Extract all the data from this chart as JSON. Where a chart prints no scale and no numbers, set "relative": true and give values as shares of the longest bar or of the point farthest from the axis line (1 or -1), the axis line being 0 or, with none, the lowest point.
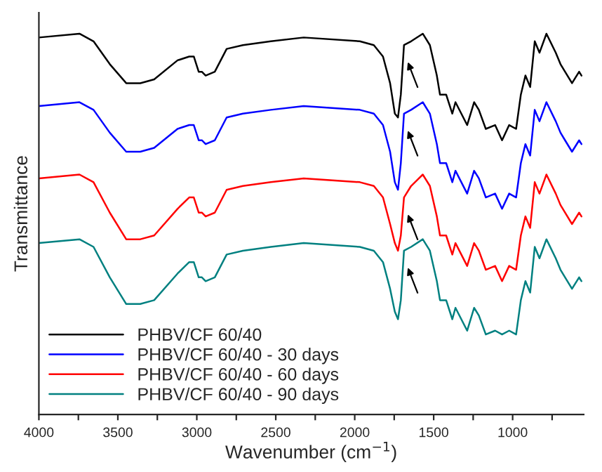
{
  "chart_data": {
    "type": "line",
    "relative": true,
    "xlabel": "Wavenumber (cm$^{−1}$)",
    "ylabel": "Transmittance",
    "xlim": [
      4000,
      550
    ],
    "xticks": [
      4000,
      {
        "value": 3750,
        "label": null
      },
      3500,
      {
        "value": 3250,
        "label": null
      },
      3000,
      {
        "value": 2750,
        "label": null
      },
      2500,
      {
        "value": 2250,
        "label": null
      },
      2000,
      {
        "value": 1750,
        "label": null
      },
      1500,
      {
        "value": 1250,
        "label": null
      },
      1000,
      {
        "value": 750,
        "label": null
      }
    ],
    "x": [
      4000,
      3743,
      3654,
      3551,
      3447,
      3358,
      3270,
      3122,
      3048,
      3019,
      2988,
      2968,
      2944,
      2886,
      2811,
      2708,
      2531,
      2323,
      1968,
      1879,
      1821,
      1776,
      1746,
      1726,
      1708,
      1688,
      1643,
      1569,
      1524,
      1480,
      1460,
      1421,
      1382,
      1362,
      1288,
      1244,
      1214,
      1170,
      1111,
      1067,
      1022,
      978,
      948,
      919,
      889,
      860,
      830,
      786,
      727,
      697,
      668,
      624,
      579,
      564
    ],
    "series": [
      {
        "name": "PHBV/CF 60/40",
        "color": "#000000",
        "values": [
          0.99,
          1.0,
          0.98,
          0.92,
          0.87,
          0.87,
          0.88,
          0.93,
          0.94,
          0.94,
          0.9,
          0.9,
          0.89,
          0.9,
          0.96,
          0.97,
          0.98,
          0.99,
          0.98,
          0.97,
          0.94,
          0.87,
          0.79,
          0.78,
          0.84,
          0.97,
          0.98,
          1.0,
          0.97,
          0.89,
          0.84,
          0.84,
          0.79,
          0.82,
          0.76,
          0.82,
          0.8,
          0.75,
          0.76,
          0.72,
          0.76,
          0.75,
          0.84,
          0.89,
          0.86,
          0.98,
          0.95,
          1.0,
          0.95,
          0.92,
          0.9,
          0.87,
          0.9,
          0.89
        ]
      },
      {
        "name": "PHBV/CF 60/40 - 30 days",
        "color": "#0000ff",
        "values": [
          0.81,
          0.82,
          0.8,
          0.74,
          0.69,
          0.69,
          0.7,
          0.75,
          0.76,
          0.76,
          0.72,
          0.72,
          0.71,
          0.72,
          0.78,
          0.79,
          0.8,
          0.81,
          0.8,
          0.79,
          0.76,
          0.69,
          0.61,
          0.59,
          0.66,
          0.79,
          0.8,
          0.82,
          0.79,
          0.71,
          0.66,
          0.66,
          0.61,
          0.64,
          0.58,
          0.64,
          0.62,
          0.57,
          0.58,
          0.54,
          0.58,
          0.57,
          0.66,
          0.71,
          0.68,
          0.8,
          0.77,
          0.82,
          0.77,
          0.74,
          0.72,
          0.69,
          0.72,
          0.71
        ]
      },
      {
        "name": "PHBV/CF 60/40 - 60 days",
        "color": "#ff0000",
        "values": [
          0.62,
          0.63,
          0.61,
          0.53,
          0.46,
          0.46,
          0.47,
          0.54,
          0.57,
          0.57,
          0.53,
          0.53,
          0.52,
          0.53,
          0.59,
          0.6,
          0.61,
          0.62,
          0.61,
          0.6,
          0.57,
          0.5,
          0.45,
          0.43,
          0.47,
          0.57,
          0.6,
          0.63,
          0.6,
          0.52,
          0.47,
          0.47,
          0.42,
          0.45,
          0.39,
          0.45,
          0.43,
          0.38,
          0.39,
          0.35,
          0.39,
          0.38,
          0.47,
          0.52,
          0.49,
          0.61,
          0.58,
          0.63,
          0.58,
          0.55,
          0.53,
          0.5,
          0.53,
          0.52
        ]
      },
      {
        "name": "PHBV/CF 60/40 - 90 days",
        "color": "#008080",
        "values": [
          0.45,
          0.46,
          0.44,
          0.36,
          0.29,
          0.29,
          0.3,
          0.37,
          0.4,
          0.4,
          0.36,
          0.36,
          0.35,
          0.36,
          0.42,
          0.43,
          0.44,
          0.45,
          0.44,
          0.43,
          0.4,
          0.33,
          0.27,
          0.25,
          0.3,
          0.43,
          0.44,
          0.46,
          0.43,
          0.35,
          0.3,
          0.3,
          0.25,
          0.28,
          0.22,
          0.28,
          0.26,
          0.21,
          0.22,
          0.21,
          0.22,
          0.21,
          0.3,
          0.35,
          0.32,
          0.44,
          0.41,
          0.46,
          0.41,
          0.38,
          0.36,
          0.33,
          0.36,
          0.35
        ]
      }
    ],
    "legend": "bottom left",
    "grid": false
  }
}
